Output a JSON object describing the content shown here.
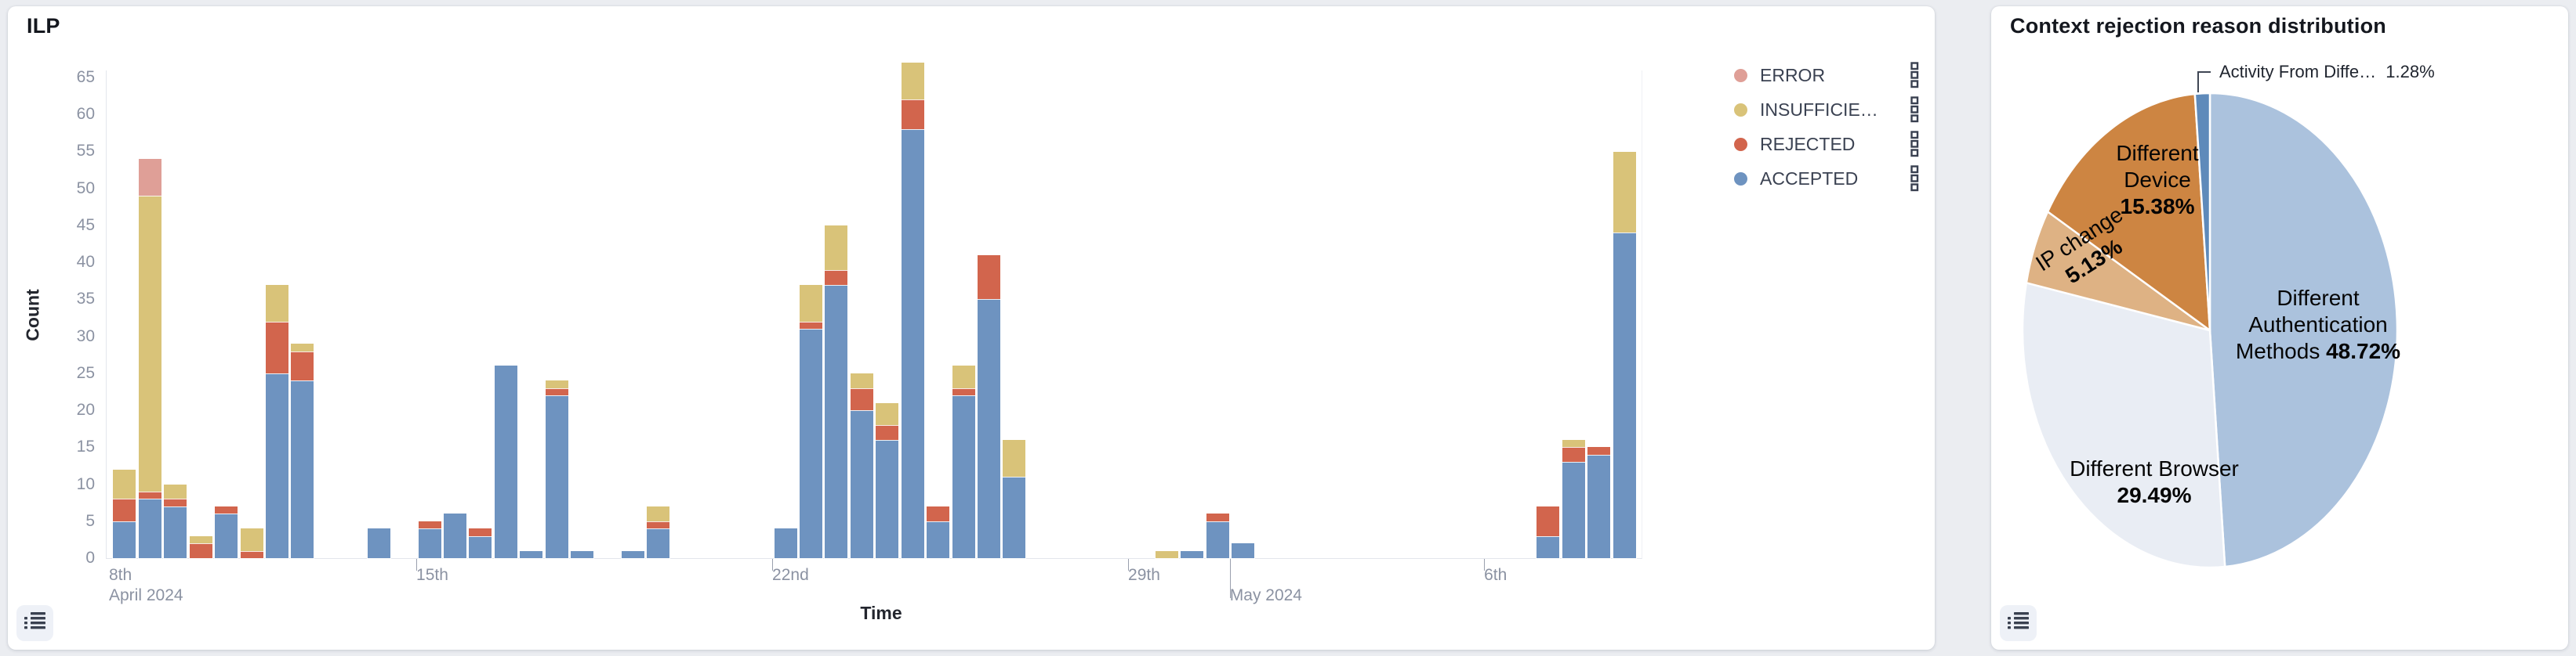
{
  "page": {
    "background": "#ebedf1"
  },
  "left_panel": {
    "title": "ILP",
    "y_axis_name": "Count",
    "x_axis_name": "Time",
    "legend": {
      "items": [
        {
          "label": "ERROR",
          "color": "#df9f97"
        },
        {
          "label": "INSUFFICIE…",
          "color": "#d9c379"
        },
        {
          "label": "REJECTED",
          "color": "#d2654d"
        },
        {
          "label": "ACCEPTED",
          "color": "#6e93c0"
        }
      ]
    }
  },
  "right_panel": {
    "title": "Context rejection reason distribution",
    "callout": {
      "text": "Activity From Diffe…",
      "pct_text": "1.28%"
    }
  },
  "chart_data": [
    {
      "type": "bar",
      "panel": "left",
      "title": "ILP",
      "xlabel": "Time",
      "ylabel": "Count",
      "ylim": [
        0,
        65
      ],
      "y_ticks": [
        0,
        5,
        10,
        15,
        20,
        25,
        30,
        35,
        40,
        45,
        50,
        55,
        60,
        65
      ],
      "x_unit": "half-day slots starting 2024-04-08",
      "x_ticks": [
        {
          "slot": 0,
          "label": "8th",
          "sub_label": "April 2024",
          "edge_clamped": true
        },
        {
          "slot": 14,
          "label": "15th"
        },
        {
          "slot": 28,
          "label": "22nd"
        },
        {
          "slot": 42,
          "label": "29th"
        },
        {
          "slot": 46,
          "label": "May 2024",
          "month_row": true
        },
        {
          "slot": 56,
          "label": "6th"
        }
      ],
      "series": [
        {
          "key": "accepted",
          "name": "ACCEPTED",
          "color": "#6e93c0"
        },
        {
          "key": "rejected",
          "name": "REJECTED",
          "color": "#d2654d"
        },
        {
          "key": "insufficient",
          "name": "INSUFFICIE…",
          "color": "#d9c379"
        },
        {
          "key": "error",
          "name": "ERROR",
          "color": "#df9f97"
        }
      ],
      "bars": [
        {
          "slot": 2,
          "accepted": 5,
          "rejected": 3,
          "insufficient": 4,
          "error": 0
        },
        {
          "slot": 3,
          "accepted": 8,
          "rejected": 1,
          "insufficient": 40,
          "error": 5
        },
        {
          "slot": 4,
          "accepted": 7,
          "rejected": 1,
          "insufficient": 2,
          "error": 0
        },
        {
          "slot": 5,
          "accepted": 0,
          "rejected": 2,
          "insufficient": 1,
          "error": 0
        },
        {
          "slot": 6,
          "accepted": 6,
          "rejected": 1,
          "insufficient": 0,
          "error": 0
        },
        {
          "slot": 7,
          "accepted": 0,
          "rejected": 1,
          "insufficient": 3,
          "error": 0
        },
        {
          "slot": 8,
          "accepted": 25,
          "rejected": 7,
          "insufficient": 5,
          "error": 0
        },
        {
          "slot": 9,
          "accepted": 24,
          "rejected": 4,
          "insufficient": 1,
          "error": 0
        },
        {
          "slot": 12,
          "accepted": 4,
          "rejected": 0,
          "insufficient": 0,
          "error": 0
        },
        {
          "slot": 14,
          "accepted": 4,
          "rejected": 1,
          "insufficient": 0,
          "error": 0
        },
        {
          "slot": 15,
          "accepted": 6,
          "rejected": 0,
          "insufficient": 0,
          "error": 0
        },
        {
          "slot": 16,
          "accepted": 3,
          "rejected": 1,
          "insufficient": 0,
          "error": 0
        },
        {
          "slot": 17,
          "accepted": 26,
          "rejected": 0,
          "insufficient": 0,
          "error": 0
        },
        {
          "slot": 18,
          "accepted": 1,
          "rejected": 0,
          "insufficient": 0,
          "error": 0
        },
        {
          "slot": 19,
          "accepted": 22,
          "rejected": 1,
          "insufficient": 1,
          "error": 0
        },
        {
          "slot": 20,
          "accepted": 1,
          "rejected": 0,
          "insufficient": 0,
          "error": 0
        },
        {
          "slot": 22,
          "accepted": 1,
          "rejected": 0,
          "insufficient": 0,
          "error": 0
        },
        {
          "slot": 23,
          "accepted": 4,
          "rejected": 1,
          "insufficient": 2,
          "error": 0
        },
        {
          "slot": 28,
          "accepted": 4,
          "rejected": 0,
          "insufficient": 0,
          "error": 0
        },
        {
          "slot": 29,
          "accepted": 31,
          "rejected": 1,
          "insufficient": 5,
          "error": 0
        },
        {
          "slot": 30,
          "accepted": 37,
          "rejected": 2,
          "insufficient": 6,
          "error": 0
        },
        {
          "slot": 31,
          "accepted": 20,
          "rejected": 3,
          "insufficient": 2,
          "error": 0
        },
        {
          "slot": 32,
          "accepted": 16,
          "rejected": 2,
          "insufficient": 3,
          "error": 0
        },
        {
          "slot": 33,
          "accepted": 58,
          "rejected": 4,
          "insufficient": 5,
          "error": 0
        },
        {
          "slot": 34,
          "accepted": 5,
          "rejected": 2,
          "insufficient": 0,
          "error": 0
        },
        {
          "slot": 35,
          "accepted": 22,
          "rejected": 1,
          "insufficient": 3,
          "error": 0
        },
        {
          "slot": 36,
          "accepted": 35,
          "rejected": 6,
          "insufficient": 0,
          "error": 0
        },
        {
          "slot": 37,
          "accepted": 11,
          "rejected": 0,
          "insufficient": 5,
          "error": 0
        },
        {
          "slot": 43,
          "accepted": 0,
          "rejected": 0,
          "insufficient": 1,
          "error": 0
        },
        {
          "slot": 44,
          "accepted": 1,
          "rejected": 0,
          "insufficient": 0,
          "error": 0
        },
        {
          "slot": 45,
          "accepted": 5,
          "rejected": 1,
          "insufficient": 0,
          "error": 0
        },
        {
          "slot": 46,
          "accepted": 2,
          "rejected": 0,
          "insufficient": 0,
          "error": 0
        },
        {
          "slot": 58,
          "accepted": 3,
          "rejected": 4,
          "insufficient": 0,
          "error": 0
        },
        {
          "slot": 59,
          "accepted": 13,
          "rejected": 2,
          "insufficient": 1,
          "error": 0
        },
        {
          "slot": 60,
          "accepted": 14,
          "rejected": 1,
          "insufficient": 0,
          "error": 0
        },
        {
          "slot": 61,
          "accepted": 44,
          "rejected": 0,
          "insufficient": 11,
          "error": 0
        }
      ]
    },
    {
      "type": "pie",
      "panel": "right",
      "title": "Context rejection reason distribution",
      "start_angle": "12 o'clock, clockwise",
      "slices": [
        {
          "label": "Different Authentication Methods",
          "pct": 48.72,
          "pct_text": "48.72%",
          "color": "#abc2dd",
          "label_lines": [
            "Different",
            "Authentication",
            "Methods"
          ],
          "pct_inline": true
        },
        {
          "label": "Different Browser",
          "pct": 29.49,
          "pct_text": "29.49%",
          "color": "#e9edf4",
          "label_lines": [
            "Different Browser"
          ]
        },
        {
          "label": "IP change",
          "pct": 5.13,
          "pct_text": "5.13%",
          "color": "#deb284",
          "label_lines": [
            "IP change"
          ],
          "rotated": true
        },
        {
          "label": "Different Device",
          "pct": 15.38,
          "pct_text": "15.38%",
          "color": "#cd8542",
          "label_lines": [
            "Different",
            "Device"
          ]
        },
        {
          "label": "Activity From Diffe…",
          "pct": 1.28,
          "pct_text": "1.28%",
          "color": "#5e8aba",
          "callout": true
        }
      ]
    }
  ]
}
